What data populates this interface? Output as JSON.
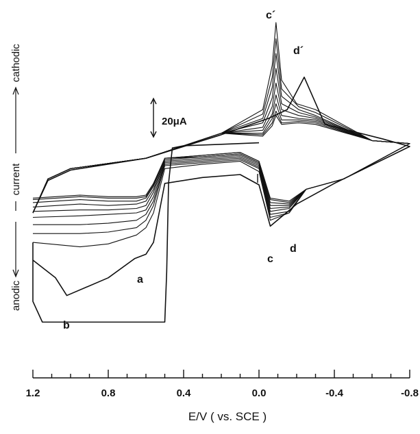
{
  "chart_data": {
    "type": "line",
    "title": "",
    "xlabel": "E/V  ( vs.  SCE )",
    "ylabel_parts": {
      "anodic": "anodic",
      "current": "current",
      "cathodic": "cathodic"
    },
    "x_ticks": [
      "1.2",
      "0.8",
      "0.4",
      "0.0",
      "-0.4",
      "-0.8"
    ],
    "x_tick_values": [
      1.2,
      0.8,
      0.4,
      0.0,
      -0.4,
      -0.8
    ],
    "xlim": [
      1.2,
      -0.8
    ],
    "x_minor_step": 0.1,
    "scale_bar": {
      "label": "20μA",
      "value_uA": 20
    },
    "ylim_uA": [
      -110,
      115
    ],
    "grid": false,
    "peak_labels": {
      "a": "a",
      "b": "b",
      "c": "c",
      "d": "d",
      "c_prime": "c´",
      "d_prime": "d´"
    },
    "peaks": [
      {
        "label": "a",
        "E": 0.58,
        "i_uA": -48
      },
      {
        "label": "b",
        "E": 1.02,
        "i_uA": -76
      },
      {
        "label": "c",
        "E": -0.06,
        "i_uA": -29
      },
      {
        "label": "d",
        "E": -0.16,
        "i_uA": -24
      },
      {
        "label": "c´",
        "E": -0.09,
        "i_uA": 109
      },
      {
        "label": "d´",
        "E": -0.23,
        "i_uA": 72
      }
    ],
    "series": [
      {
        "values": [
          [
            0.0,
            27.5
          ],
          [
            0.2,
            26.5
          ],
          [
            0.4,
            25.5
          ],
          [
            0.46,
            24
          ],
          [
            0.48,
            0
          ],
          [
            0.49,
            -60
          ],
          [
            0.5,
            -94
          ],
          [
            1.15,
            -94
          ],
          [
            1.2,
            -80
          ],
          [
            1.2,
            -40
          ]
        ]
      },
      {
        "values": [
          [
            1.2,
            -52
          ],
          [
            1.08,
            -64
          ],
          [
            1.02,
            -76
          ],
          [
            0.8,
            -64
          ],
          [
            0.66,
            -51
          ],
          [
            0.6,
            -48
          ],
          [
            0.56,
            -40
          ],
          [
            0.5,
            0
          ],
          [
            0.3,
            4
          ],
          [
            0.1,
            6
          ],
          [
            0.0,
            -1
          ],
          [
            -0.06,
            -29
          ],
          [
            -0.2,
            -14
          ],
          [
            -0.4,
            0
          ],
          [
            -0.8,
            25
          ],
          [
            -0.66,
            30
          ],
          [
            -0.35,
            40
          ],
          [
            -0.24,
            72
          ],
          [
            -0.15,
            50
          ],
          [
            -0.05,
            44
          ],
          [
            0.2,
            33
          ],
          [
            0.6,
            17
          ],
          [
            1.0,
            9
          ],
          [
            1.12,
            2
          ],
          [
            1.2,
            -20
          ]
        ]
      },
      {
        "values": [
          [
            1.2,
            -40
          ],
          [
            0.95,
            -43
          ],
          [
            0.8,
            -41
          ],
          [
            0.65,
            -35
          ],
          [
            0.6,
            -30
          ],
          [
            0.56,
            -20
          ],
          [
            0.5,
            10
          ],
          [
            0.3,
            13
          ],
          [
            0.1,
            15
          ],
          [
            0.0,
            8
          ],
          [
            -0.06,
            -25
          ],
          [
            -0.16,
            -20
          ],
          [
            -0.25,
            -4
          ],
          [
            -0.45,
            3
          ],
          [
            -0.8,
            27
          ],
          [
            -0.6,
            29
          ],
          [
            -0.3,
            50
          ],
          [
            -0.2,
            54
          ],
          [
            -0.12,
            70
          ],
          [
            -0.09,
            109
          ],
          [
            -0.07,
            80
          ],
          [
            -0.02,
            50
          ],
          [
            0.2,
            34
          ],
          [
            0.6,
            17
          ],
          [
            1.0,
            10
          ],
          [
            1.12,
            3
          ],
          [
            1.2,
            -20
          ]
        ]
      },
      {
        "values": [
          [
            1.2,
            -34
          ],
          [
            0.95,
            -34
          ],
          [
            0.8,
            -33
          ],
          [
            0.65,
            -30
          ],
          [
            0.6,
            -25
          ],
          [
            0.56,
            -15
          ],
          [
            0.5,
            12
          ],
          [
            0.3,
            14
          ],
          [
            0.1,
            16
          ],
          [
            0.0,
            10
          ],
          [
            -0.06,
            -23
          ],
          [
            -0.16,
            -20
          ],
          [
            -0.25,
            -4
          ],
          [
            -0.45,
            3
          ],
          [
            -0.8,
            27
          ],
          [
            -0.6,
            29
          ],
          [
            -0.3,
            48
          ],
          [
            -0.21,
            52
          ],
          [
            -0.12,
            64
          ],
          [
            -0.09,
            98
          ],
          [
            -0.07,
            72
          ],
          [
            -0.02,
            47
          ],
          [
            0.2,
            34
          ],
          [
            0.6,
            17
          ],
          [
            1.0,
            10
          ],
          [
            1.12,
            3
          ],
          [
            1.2,
            -20
          ]
        ]
      },
      {
        "values": [
          [
            1.2,
            -28
          ],
          [
            0.95,
            -28
          ],
          [
            0.8,
            -27
          ],
          [
            0.65,
            -25
          ],
          [
            0.6,
            -21
          ],
          [
            0.56,
            -12
          ],
          [
            0.5,
            13
          ],
          [
            0.3,
            15
          ],
          [
            0.1,
            17
          ],
          [
            0.0,
            11
          ],
          [
            -0.06,
            -21
          ],
          [
            -0.16,
            -19
          ],
          [
            -0.25,
            -4
          ],
          [
            -0.45,
            3
          ],
          [
            -0.8,
            27
          ],
          [
            -0.6,
            29
          ],
          [
            -0.3,
            46
          ],
          [
            -0.21,
            50
          ],
          [
            -0.12,
            59
          ],
          [
            -0.09,
            88
          ],
          [
            -0.07,
            65
          ],
          [
            -0.02,
            44
          ],
          [
            0.2,
            34
          ],
          [
            0.6,
            17
          ],
          [
            1.0,
            10
          ],
          [
            1.12,
            3
          ],
          [
            1.2,
            -20
          ]
        ]
      },
      {
        "values": [
          [
            1.2,
            -23
          ],
          [
            0.95,
            -22
          ],
          [
            0.8,
            -21
          ],
          [
            0.65,
            -20
          ],
          [
            0.6,
            -18
          ],
          [
            0.56,
            -9
          ],
          [
            0.5,
            14
          ],
          [
            0.3,
            16
          ],
          [
            0.1,
            18
          ],
          [
            0.0,
            12
          ],
          [
            -0.06,
            -19
          ],
          [
            -0.16,
            -17
          ],
          [
            -0.25,
            -4
          ],
          [
            -0.45,
            3
          ],
          [
            -0.8,
            27
          ],
          [
            -0.6,
            29
          ],
          [
            -0.3,
            45
          ],
          [
            -0.21,
            48
          ],
          [
            -0.12,
            54
          ],
          [
            -0.09,
            78
          ],
          [
            -0.07,
            58
          ],
          [
            -0.02,
            41
          ],
          [
            0.2,
            34
          ],
          [
            0.6,
            17
          ],
          [
            1.0,
            10
          ],
          [
            1.12,
            3
          ],
          [
            1.2,
            -20
          ]
        ]
      },
      {
        "values": [
          [
            1.2,
            -19
          ],
          [
            0.95,
            -18
          ],
          [
            0.8,
            -18
          ],
          [
            0.65,
            -17
          ],
          [
            0.6,
            -15
          ],
          [
            0.56,
            -6
          ],
          [
            0.5,
            15
          ],
          [
            0.3,
            17
          ],
          [
            0.1,
            19
          ],
          [
            0.0,
            13
          ],
          [
            -0.06,
            -17
          ],
          [
            -0.16,
            -16
          ],
          [
            -0.25,
            -4
          ],
          [
            -0.45,
            3
          ],
          [
            -0.8,
            27
          ],
          [
            -0.6,
            29
          ],
          [
            -0.3,
            44
          ],
          [
            -0.21,
            46
          ],
          [
            -0.12,
            50
          ],
          [
            -0.09,
            68
          ],
          [
            -0.07,
            52
          ],
          [
            -0.02,
            38
          ],
          [
            0.2,
            34
          ],
          [
            0.6,
            17
          ],
          [
            1.0,
            10
          ],
          [
            1.12,
            3
          ],
          [
            1.2,
            -20
          ]
        ]
      },
      {
        "values": [
          [
            1.2,
            -16
          ],
          [
            0.95,
            -14
          ],
          [
            0.8,
            -15
          ],
          [
            0.65,
            -14
          ],
          [
            0.6,
            -12
          ],
          [
            0.56,
            -4
          ],
          [
            0.5,
            16
          ],
          [
            0.3,
            18
          ],
          [
            0.1,
            20
          ],
          [
            0.0,
            14
          ],
          [
            -0.06,
            -15
          ],
          [
            -0.16,
            -15
          ],
          [
            -0.25,
            -4
          ],
          [
            -0.45,
            3
          ],
          [
            -0.8,
            27
          ],
          [
            -0.6,
            29
          ],
          [
            -0.3,
            43
          ],
          [
            -0.21,
            44
          ],
          [
            -0.12,
            46
          ],
          [
            -0.09,
            60
          ],
          [
            -0.07,
            47
          ],
          [
            -0.02,
            36
          ],
          [
            0.2,
            34
          ],
          [
            0.6,
            17
          ],
          [
            1.0,
            10
          ],
          [
            1.12,
            3
          ],
          [
            1.2,
            -20
          ]
        ]
      },
      {
        "values": [
          [
            1.2,
            -13
          ],
          [
            0.95,
            -11
          ],
          [
            0.8,
            -12
          ],
          [
            0.65,
            -12
          ],
          [
            0.6,
            -10
          ],
          [
            0.56,
            -2
          ],
          [
            0.5,
            17
          ],
          [
            0.3,
            18
          ],
          [
            0.1,
            20
          ],
          [
            0.0,
            14
          ],
          [
            -0.06,
            -13
          ],
          [
            -0.16,
            -14
          ],
          [
            -0.25,
            -4
          ],
          [
            -0.45,
            3
          ],
          [
            -0.8,
            27
          ],
          [
            -0.6,
            29
          ],
          [
            -0.3,
            42
          ],
          [
            -0.21,
            43
          ],
          [
            -0.12,
            43
          ],
          [
            -0.09,
            54
          ],
          [
            -0.07,
            44
          ],
          [
            -0.02,
            34
          ],
          [
            0.2,
            34
          ],
          [
            0.6,
            17
          ],
          [
            1.0,
            10
          ],
          [
            1.12,
            3
          ],
          [
            1.2,
            -20
          ]
        ]
      },
      {
        "values": [
          [
            1.2,
            -11
          ],
          [
            0.95,
            -9
          ],
          [
            0.8,
            -10
          ],
          [
            0.65,
            -10
          ],
          [
            0.6,
            -9
          ],
          [
            0.56,
            -1
          ],
          [
            0.5,
            17
          ],
          [
            0.3,
            19
          ],
          [
            0.1,
            21
          ],
          [
            0.0,
            15
          ],
          [
            -0.06,
            -11
          ],
          [
            -0.16,
            -13
          ],
          [
            -0.25,
            -4
          ],
          [
            -0.45,
            3
          ],
          [
            -0.8,
            27
          ],
          [
            -0.6,
            29
          ],
          [
            -0.3,
            41
          ],
          [
            -0.21,
            42
          ],
          [
            -0.12,
            41
          ],
          [
            -0.09,
            49
          ],
          [
            -0.07,
            41
          ],
          [
            -0.02,
            33
          ],
          [
            0.2,
            34
          ],
          [
            0.6,
            17
          ],
          [
            1.0,
            10
          ],
          [
            1.12,
            3
          ],
          [
            1.2,
            -20
          ]
        ]
      },
      {
        "values": [
          [
            1.2,
            -10
          ],
          [
            0.95,
            -8
          ],
          [
            0.8,
            -9
          ],
          [
            0.65,
            -9
          ],
          [
            0.6,
            -8
          ],
          [
            0.56,
            0
          ],
          [
            0.5,
            17
          ],
          [
            0.3,
            19
          ],
          [
            0.1,
            21
          ],
          [
            0.0,
            15
          ],
          [
            -0.06,
            -10
          ],
          [
            -0.16,
            -12
          ],
          [
            -0.25,
            -4
          ],
          [
            -0.45,
            3
          ],
          [
            -0.8,
            27
          ],
          [
            -0.6,
            29
          ],
          [
            -0.3,
            40
          ],
          [
            -0.21,
            41
          ],
          [
            -0.12,
            40
          ],
          [
            -0.09,
            46
          ],
          [
            -0.07,
            39
          ],
          [
            -0.02,
            32
          ],
          [
            0.2,
            34
          ],
          [
            0.6,
            17
          ],
          [
            1.0,
            10
          ],
          [
            1.12,
            3
          ],
          [
            1.2,
            -20
          ]
        ]
      }
    ]
  }
}
